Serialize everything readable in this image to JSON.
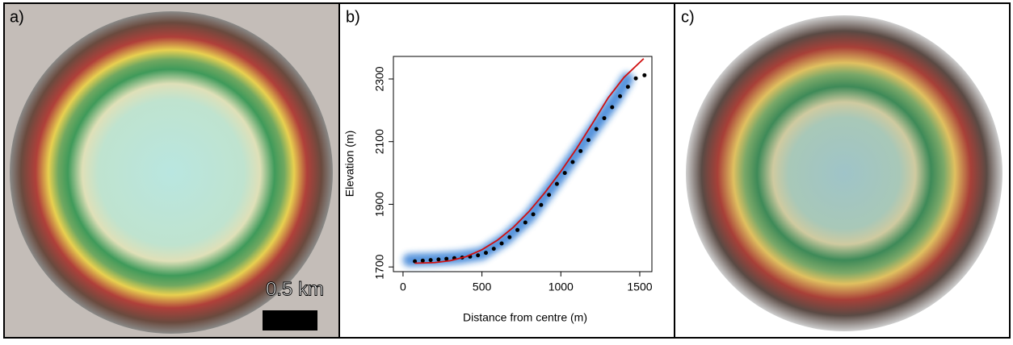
{
  "panels": [
    {
      "label": "a)"
    },
    {
      "label": "b)"
    },
    {
      "label": "c)"
    }
  ],
  "scale_bar": "0.5 km",
  "chart_data": {
    "type": "scatter",
    "x_label": "Distance from centre (m)",
    "y_label": "Elevation (m)",
    "xlim": [
      -61,
      1577
    ],
    "ylim": [
      1685,
      2372
    ],
    "xticks": [
      0,
      500,
      1000,
      1500
    ],
    "yticks": [
      1700,
      1900,
      2100,
      2300
    ],
    "series": [
      {
        "style": "band",
        "color": "#1f6fd0",
        "x": [
          40,
          200,
          350,
          500,
          650,
          800,
          950,
          1100,
          1250,
          1350,
          1420
        ],
        "values": [
          1722,
          1725,
          1730,
          1742,
          1790,
          1860,
          1960,
          2065,
          2170,
          2240,
          2300
        ]
      },
      {
        "style": "points",
        "color": "#000000",
        "x": [
          75,
          125,
          175,
          225,
          275,
          325,
          375,
          425,
          475,
          525,
          575,
          625,
          675,
          725,
          775,
          825,
          875,
          925,
          975,
          1025,
          1075,
          1125,
          1175,
          1225,
          1275,
          1325,
          1375,
          1425,
          1475,
          1530
        ],
        "values": [
          1718,
          1720,
          1722,
          1724,
          1726,
          1728,
          1730,
          1733,
          1737,
          1745,
          1758,
          1775,
          1795,
          1818,
          1842,
          1868,
          1898,
          1930,
          1965,
          2000,
          2035,
          2070,
          2105,
          2140,
          2175,
          2210,
          2245,
          2275,
          2302,
          2312
        ]
      },
      {
        "style": "line",
        "color": "#d01010",
        "x": [
          75,
          200,
          300,
          400,
          500,
          600,
          700,
          800,
          900,
          1000,
          1100,
          1200,
          1300,
          1400,
          1525
        ],
        "values": [
          1712,
          1714,
          1720,
          1733,
          1755,
          1786,
          1827,
          1878,
          1938,
          2005,
          2078,
          2158,
          2240,
          2305,
          2365
        ]
      }
    ]
  }
}
